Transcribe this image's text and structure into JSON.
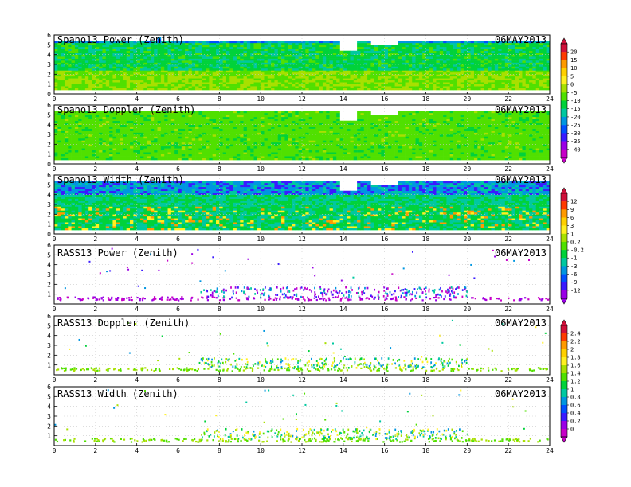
{
  "chart_data": [
    {
      "type": "heatmap",
      "title": "Spano13 Power (Zenith)",
      "date": "06MAY2013",
      "xlim": [
        0,
        24
      ],
      "ylim": [
        0,
        6
      ],
      "xticks": [
        0,
        2,
        4,
        6,
        8,
        10,
        12,
        14,
        16,
        18,
        20,
        22,
        24
      ],
      "yticks": [
        0,
        1,
        2,
        3,
        4,
        5,
        6
      ],
      "colorbar": "power"
    },
    {
      "type": "heatmap",
      "title": "Spano13 Doppler (Zenith)",
      "date": "06MAY2013",
      "xlim": [
        0,
        24
      ],
      "ylim": [
        0,
        6
      ],
      "xticks": [
        0,
        2,
        4,
        6,
        8,
        10,
        12,
        14,
        16,
        18,
        20,
        22,
        24
      ],
      "yticks": [
        0,
        1,
        2,
        3,
        4,
        5,
        6
      ],
      "colorbar": "power"
    },
    {
      "type": "heatmap",
      "title": "Spano13 Width (Zenith)",
      "date": "06MAY2013",
      "xlim": [
        0,
        24
      ],
      "ylim": [
        0,
        6
      ],
      "xticks": [
        0,
        2,
        4,
        6,
        8,
        10,
        12,
        14,
        16,
        18,
        20,
        22,
        24
      ],
      "yticks": [
        0,
        1,
        2,
        3,
        4,
        5,
        6
      ],
      "colorbar": "doppler"
    },
    {
      "type": "scatter",
      "title": "RASS13 Power (Zenith)",
      "date": "06MAY2013",
      "xlim": [
        0,
        24
      ],
      "ylim": [
        0,
        6
      ],
      "xticks": [
        0,
        2,
        4,
        6,
        8,
        10,
        12,
        14,
        16,
        18,
        20,
        22,
        24
      ],
      "yticks": [
        1,
        2,
        3,
        4,
        5,
        6
      ],
      "colorbar": "doppler"
    },
    {
      "type": "scatter",
      "title": "RASS13 Doppler (Zenith)",
      "date": "06MAY2013",
      "xlim": [
        0,
        24
      ],
      "ylim": [
        0,
        6
      ],
      "xticks": [
        0,
        2,
        4,
        6,
        8,
        10,
        12,
        14,
        16,
        18,
        20,
        22,
        24
      ],
      "yticks": [
        1,
        2,
        3,
        4,
        5,
        6
      ],
      "colorbar": "width"
    },
    {
      "type": "scatter",
      "title": "RASS13 Width (Zenith)",
      "date": "06MAY2013",
      "xlim": [
        0,
        24
      ],
      "ylim": [
        0,
        6
      ],
      "xticks": [
        0,
        2,
        4,
        6,
        8,
        10,
        12,
        14,
        16,
        18,
        20,
        22,
        24
      ],
      "yticks": [
        1,
        2,
        3,
        4,
        5,
        6
      ],
      "colorbar": "width"
    }
  ],
  "colorbars": {
    "power": {
      "labels": [
        "20",
        "15",
        "10",
        "5",
        "0",
        "-5",
        "-10",
        "-15",
        "-20",
        "-25",
        "-30",
        "-35",
        "-40"
      ],
      "colors": [
        "#d0103a",
        "#ff3a00",
        "#ff9a00",
        "#ffd000",
        "#fff020",
        "#a8e000",
        "#50e000",
        "#00d23a",
        "#00c8a0",
        "#0096e0",
        "#0050ff",
        "#3a1aff",
        "#9a00e6",
        "#c800c8"
      ]
    },
    "doppler": {
      "labels": [
        "12",
        "9",
        "6",
        "3",
        "1",
        "0.2",
        "-0.2",
        "-1",
        "-3",
        "-6",
        "-9",
        "-12"
      ],
      "colors": [
        "#d0103a",
        "#ff3a00",
        "#ff9a00",
        "#ffd000",
        "#fff020",
        "#a8e000",
        "#50e000",
        "#00d23a",
        "#00c8a0",
        "#0096e0",
        "#0050ff",
        "#3a1aff",
        "#9a00e6"
      ]
    },
    "width": {
      "labels": [
        "2.4",
        "2.2",
        "2",
        "1.8",
        "1.6",
        "1.4",
        "1.2",
        "1",
        "0.8",
        "0.6",
        "0.4",
        "0.2",
        "0"
      ],
      "colors": [
        "#d0103a",
        "#ff3a00",
        "#ff9a00",
        "#ffd000",
        "#fff020",
        "#a8e000",
        "#50e000",
        "#00d23a",
        "#00c8a0",
        "#0096e0",
        "#0050ff",
        "#3a1aff",
        "#9a00e6",
        "#c800c8"
      ]
    }
  }
}
